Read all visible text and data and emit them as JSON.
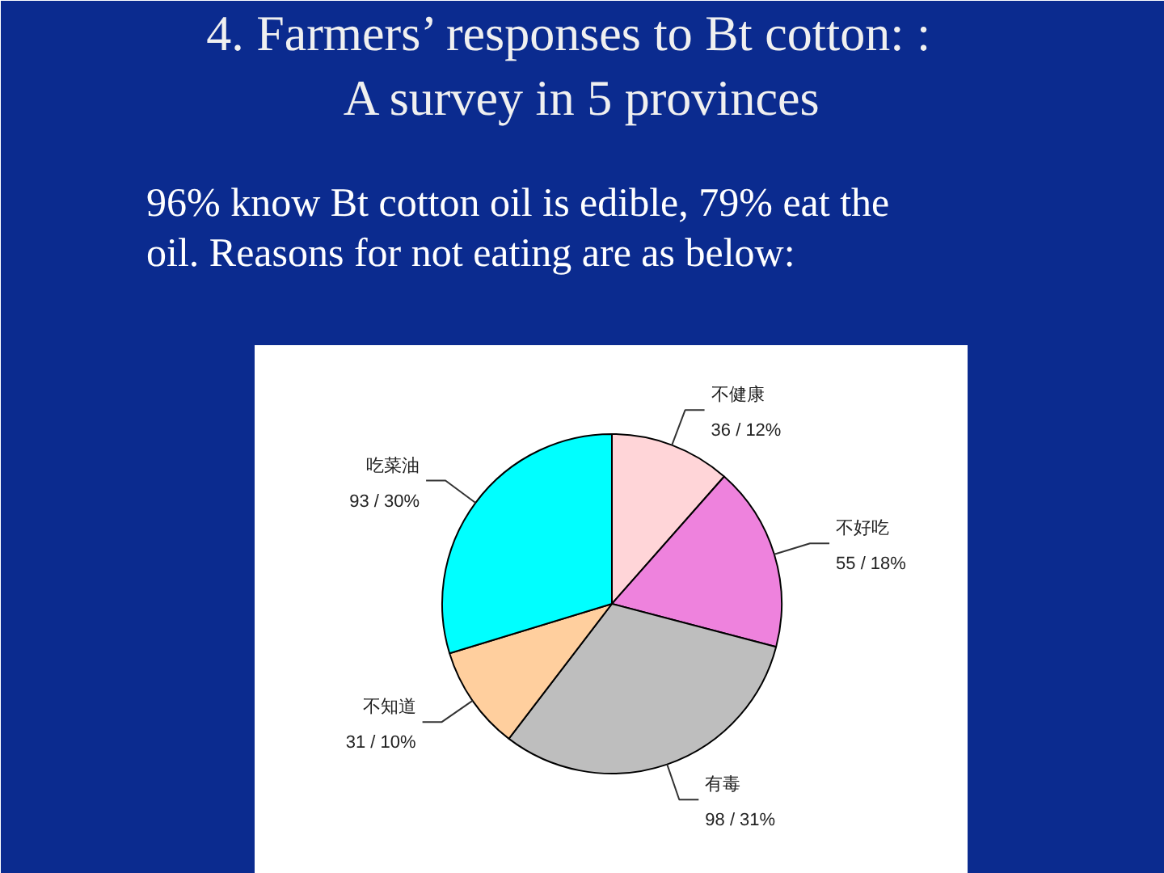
{
  "chart_data": {
    "type": "pie",
    "title": "4.  Farmers’ responses  to Bt cotton: :\nA survey in 5 provinces",
    "subtitle": "96% know Bt cotton oil is edible, 79% eat the\noil. Reasons for not eating are as below:",
    "categories": [
      "不健康",
      "不好吃",
      "有毒",
      "不知道",
      "吃菜油"
    ],
    "values": [
      36,
      55,
      98,
      31,
      93
    ],
    "value_labels": [
      "36 / 12%",
      "55 / 18%",
      "98 / 31%",
      "31 / 10%",
      "93 / 30%"
    ],
    "colors": [
      "#ffd5d8",
      "#ee82dd",
      "#bebebe",
      "#ffcf9e",
      "#00ffff"
    ]
  }
}
